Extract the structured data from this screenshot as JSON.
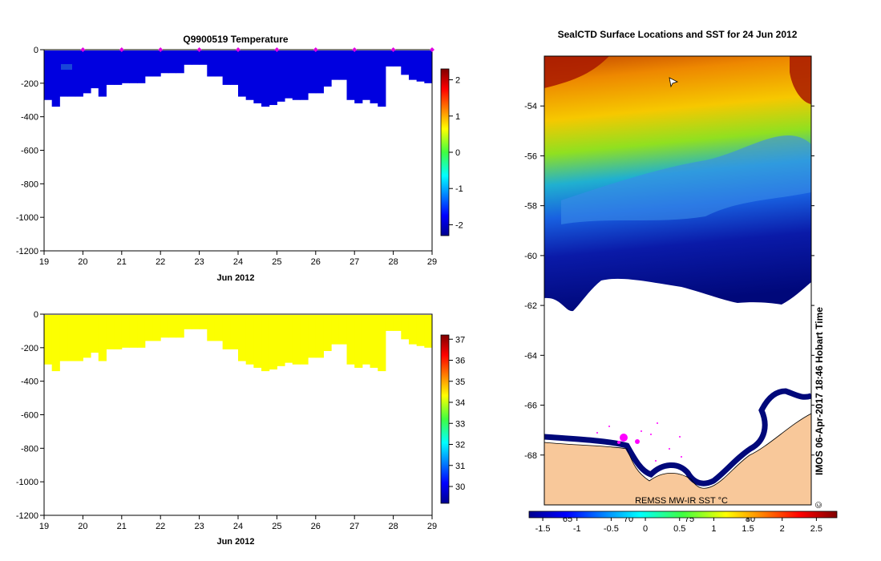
{
  "chart_data": [
    {
      "type": "heatmap",
      "title": "Q9900519  Temperature",
      "xlabel": "Jun 2012",
      "x_ticks": [
        "19",
        "20",
        "21",
        "22",
        "23",
        "24",
        "25",
        "26",
        "27",
        "28",
        "29"
      ],
      "xlim": [
        19,
        29
      ],
      "ylim": [
        -1200,
        0
      ],
      "y_ticks": [
        "0",
        "-200",
        "-400",
        "-600",
        "-800",
        "-1000",
        "-1200"
      ],
      "profile_times": [
        19.1,
        19.3,
        19.5,
        19.7,
        19.9,
        20.1,
        20.3,
        20.5,
        20.7,
        20.9,
        21.1,
        21.3,
        21.5,
        21.7,
        21.9,
        22.1,
        22.3,
        22.5,
        22.7,
        22.9,
        23.1,
        23.3,
        23.5,
        23.7,
        23.9,
        24.1,
        24.3,
        24.5,
        24.7,
        24.9,
        25.1,
        25.3,
        25.5,
        25.7,
        25.9,
        26.1,
        26.3,
        26.5,
        26.7,
        26.9,
        27.1,
        27.3,
        27.5,
        27.7,
        27.9,
        28.1,
        28.3,
        28.5,
        28.7,
        28.9
      ],
      "profile_max_depth": [
        300,
        340,
        280,
        280,
        280,
        260,
        230,
        280,
        210,
        210,
        200,
        200,
        200,
        160,
        160,
        140,
        140,
        140,
        90,
        90,
        90,
        160,
        160,
        210,
        210,
        280,
        300,
        320,
        340,
        330,
        310,
        290,
        300,
        300,
        260,
        260,
        220,
        180,
        180,
        300,
        320,
        300,
        320,
        340,
        100,
        100,
        150,
        180,
        190,
        200
      ],
      "colorbar": {
        "ticks": [
          "2",
          "1",
          "0",
          "-1",
          "-2"
        ],
        "range": [
          -2.3,
          2.3
        ]
      },
      "value": -1.9,
      "surface_markers": [
        20,
        21,
        22,
        23,
        24,
        25,
        26,
        27,
        28,
        29
      ]
    },
    {
      "type": "heatmap",
      "title": "",
      "xlabel": "Jun 2012",
      "x_ticks": [
        "19",
        "20",
        "21",
        "22",
        "23",
        "24",
        "25",
        "26",
        "27",
        "28",
        "29"
      ],
      "xlim": [
        19,
        29
      ],
      "ylim": [
        -1200,
        0
      ],
      "y_ticks": [
        "0",
        "-200",
        "-400",
        "-600",
        "-800",
        "-1000",
        "-1200"
      ],
      "colorbar": {
        "ticks": [
          "37",
          "36",
          "35",
          "34",
          "33",
          "32",
          "31",
          "30"
        ],
        "range": [
          29.2,
          37.2
        ]
      },
      "value": 34.3
    },
    {
      "type": "heatmap",
      "title": "SealCTD Surface Locations and SST for 24 Jun 2012",
      "y_ticks": [
        "-54",
        "-56",
        "-58",
        "-60",
        "-62",
        "-64",
        "-66",
        "-68"
      ],
      "ylim": [
        -70,
        -52
      ],
      "x_ticks": [
        "65",
        "70",
        "75",
        "80"
      ],
      "colorbar": {
        "ticks": [
          "-1.5",
          "-1",
          "-0.5",
          "0",
          "0.5",
          "1",
          "1.5",
          "2",
          "2.5"
        ],
        "range": [
          -1.7,
          2.8
        ]
      },
      "map_label": "REMSS MW-IR SST °C",
      "credit": "IMOS 06-Apr-2017 18:46 Hobart Time",
      "copyright": "©"
    }
  ]
}
